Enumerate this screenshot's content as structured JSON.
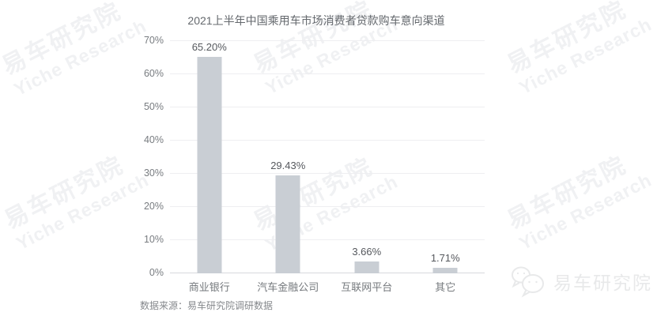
{
  "title": "2021上半年中国乘用车市场消费者贷款购车意向渠道",
  "chart_data": {
    "type": "bar",
    "categories": [
      "商业银行",
      "汽车金融公司",
      "互联网平台",
      "其它"
    ],
    "values": [
      65.2,
      29.43,
      3.66,
      1.71
    ],
    "value_labels": [
      "65.20%",
      "29.43%",
      "3.66%",
      "1.71%"
    ],
    "title": "2021上半年中国乘用车市场消费者贷款购车意向渠道",
    "xlabel": "",
    "ylabel": "",
    "ylim": [
      0,
      70
    ],
    "yticks": [
      "0%",
      "10%",
      "20%",
      "30%",
      "40%",
      "50%",
      "60%",
      "70%"
    ],
    "grid": true,
    "legend": null,
    "bar_color": "#c9ced4"
  },
  "source_note": "数据来源：易车研究院调研数据",
  "watermark": {
    "line1": "易车研究院",
    "line2": "Yiche Research"
  },
  "footer_logo": {
    "icon": "wechat-icon",
    "text": "易车研究院"
  },
  "colors": {
    "bar": "#c9ced4",
    "watermark": "#f0f1f3",
    "gridline": "#eeeef1",
    "axis_line": "#d7d9dc",
    "title_text": "#64686d",
    "tick_text": "#787c80",
    "value_text": "#55585d",
    "source_text": "#85888c",
    "logo_text": "#e8e9ea"
  }
}
